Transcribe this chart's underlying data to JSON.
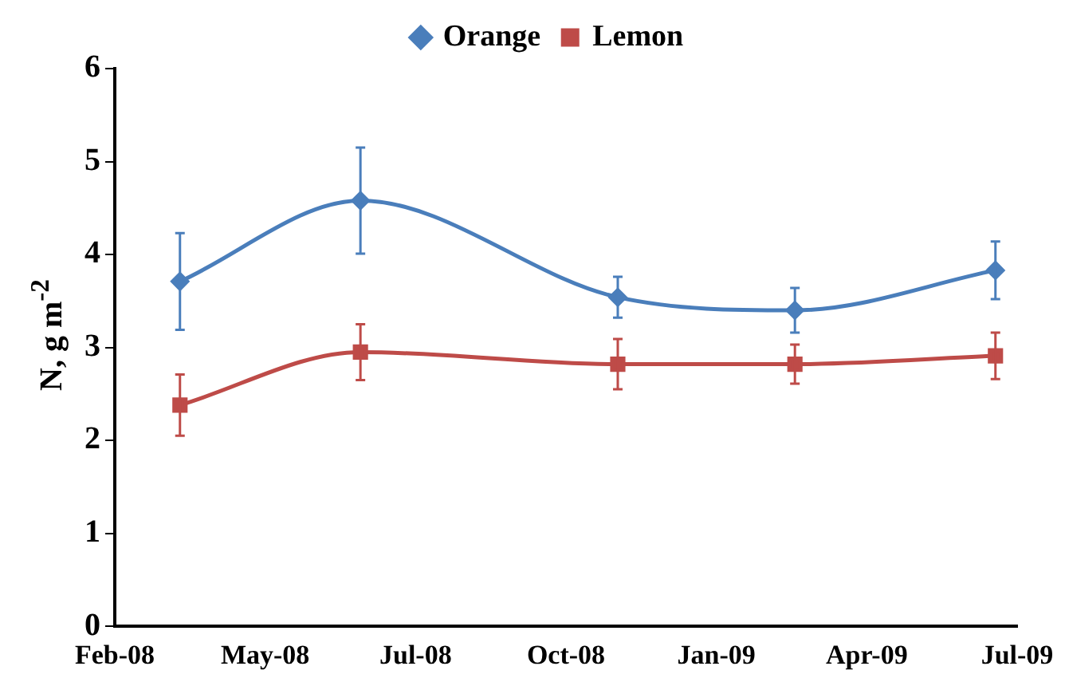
{
  "chart_data": {
    "type": "line",
    "ylabel": "N, g m$^{-2}$",
    "x": [
      "2008-03-11",
      "2008-06-27",
      "2008-11-28",
      "2009-03-14",
      "2009-07-12"
    ],
    "series": [
      {
        "name": "Orange",
        "color": "#4a7ebb",
        "marker": "diamond",
        "values": [
          3.71,
          4.58,
          3.54,
          3.4,
          3.83
        ],
        "errors": [
          0.52,
          0.57,
          0.22,
          0.24,
          0.31
        ]
      },
      {
        "name": "Lemon",
        "color": "#be4b48",
        "marker": "square",
        "values": [
          2.38,
          2.95,
          2.82,
          2.82,
          2.91
        ],
        "errors": [
          0.33,
          0.3,
          0.27,
          0.21,
          0.25
        ]
      }
    ],
    "xlim": [
      "2008-02-01",
      "2009-07-25"
    ],
    "xticks": [
      {
        "value": "2008-02-01",
        "label": "Feb-08"
      },
      {
        "value": "2008-05-01",
        "label": "May-08"
      },
      {
        "value": "2008-07-30",
        "label": "Jul-08"
      },
      {
        "value": "2008-10-28",
        "label": "Oct-08"
      },
      {
        "value": "2009-01-26",
        "label": "Jan-09"
      },
      {
        "value": "2009-04-26",
        "label": "Apr-09"
      },
      {
        "value": "2009-07-25",
        "label": "Jul-09"
      }
    ],
    "ylim": [
      0,
      6
    ],
    "yticks": [
      0,
      1,
      2,
      3,
      4,
      5,
      6
    ],
    "grid": false,
    "legend": "top"
  }
}
